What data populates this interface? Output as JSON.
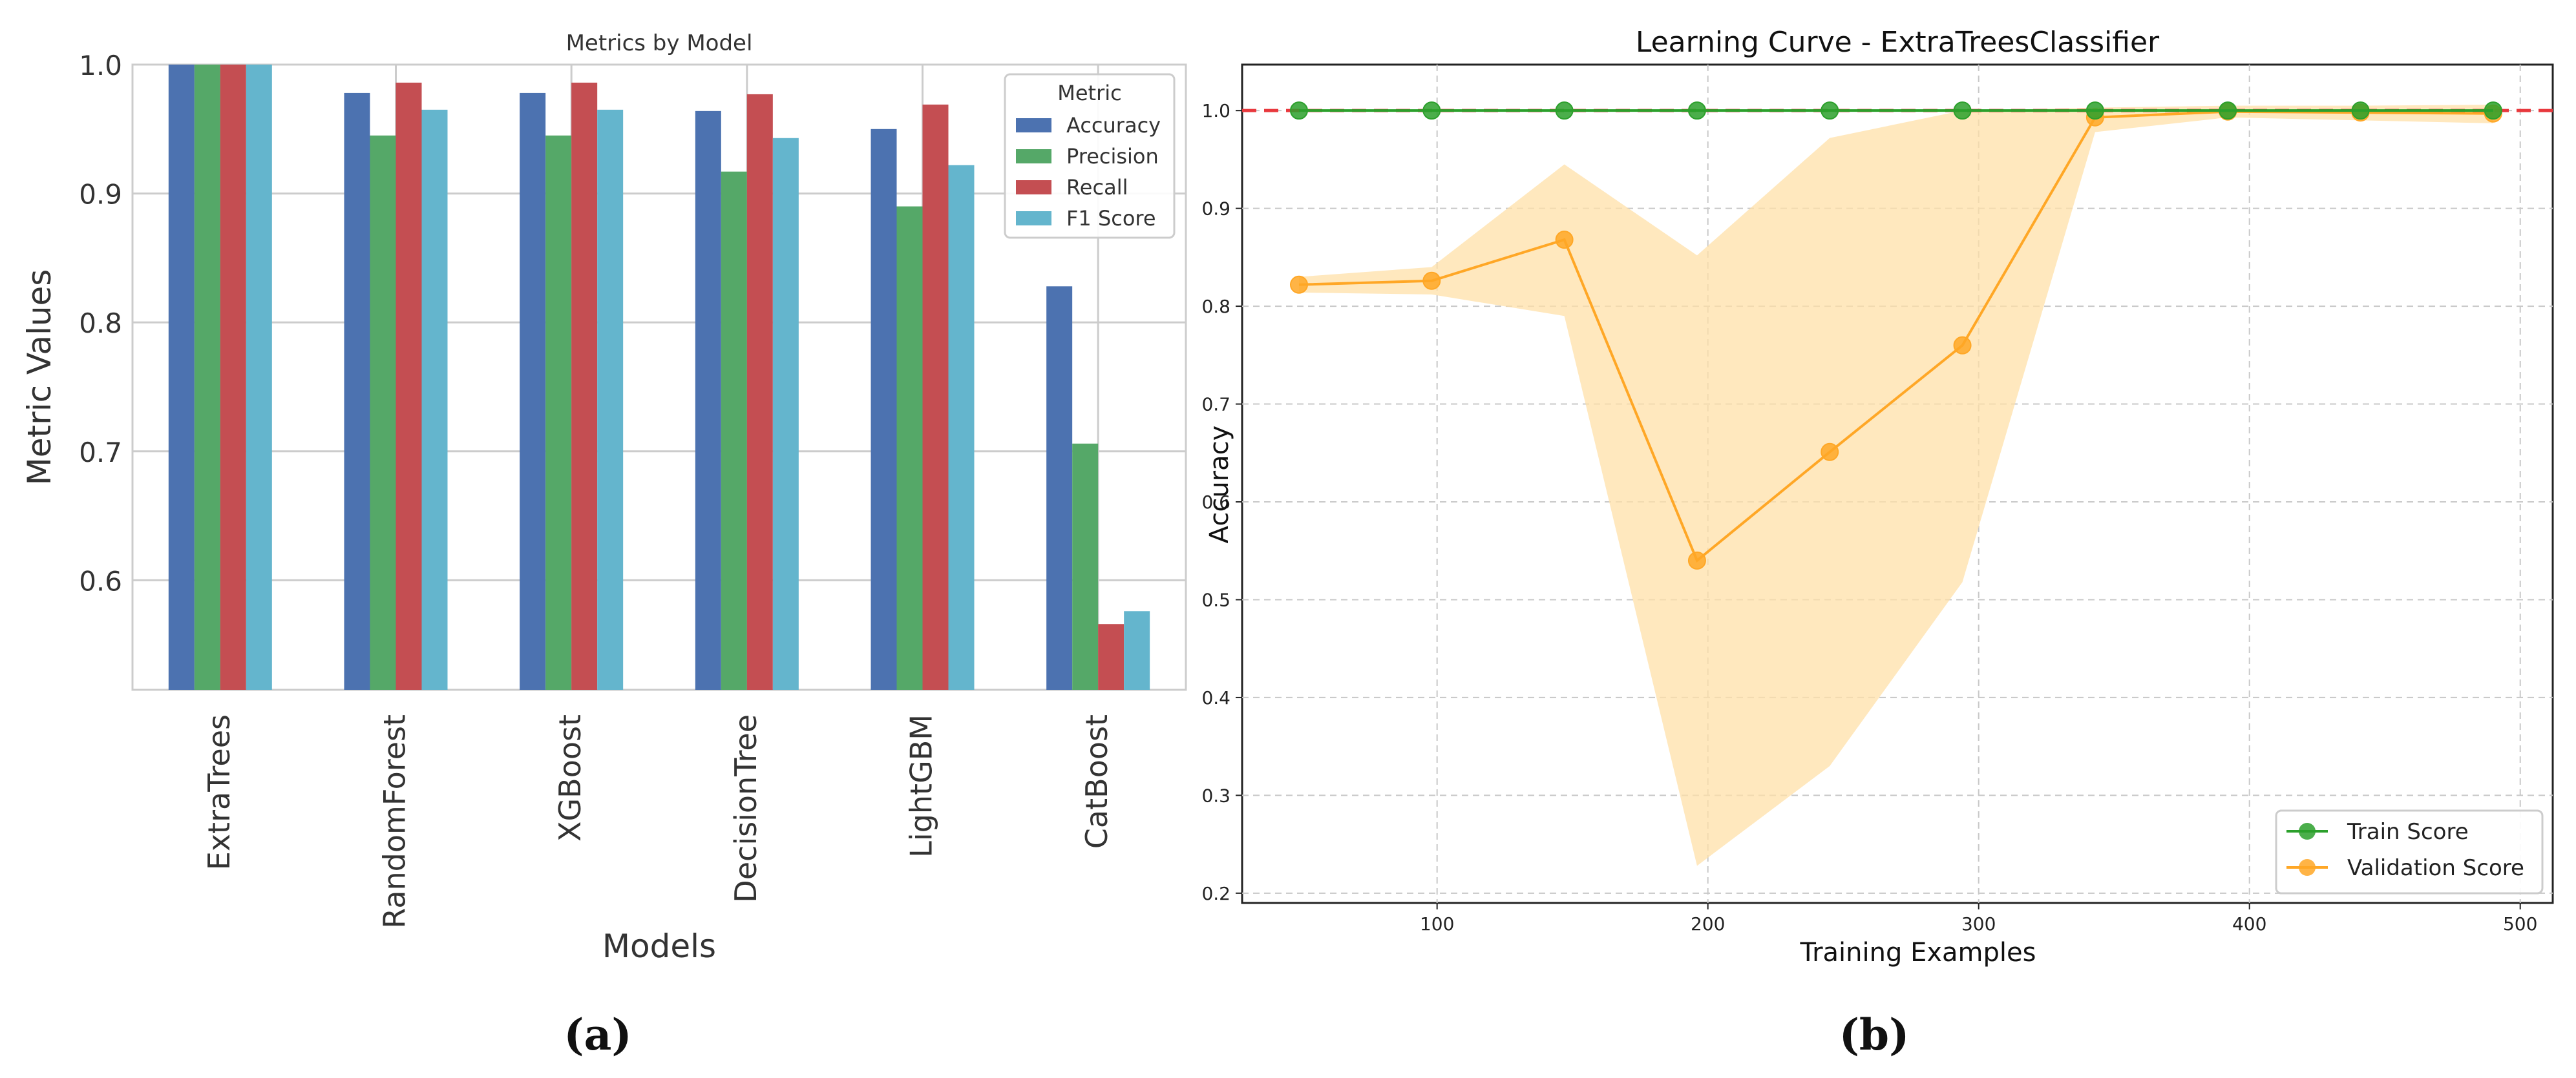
{
  "chart_data": [
    {
      "type": "bar",
      "title": "Metrics by Model",
      "xlabel": "Models",
      "ylabel": "Metric Values",
      "ylim": [
        0.515,
        1.0
      ],
      "yticks": [
        0.6,
        0.7,
        0.8,
        0.9,
        1.0
      ],
      "ytick_labels": [
        "0.6",
        "0.7",
        "0.8",
        "0.9",
        "1.0"
      ],
      "grid": true,
      "legend_title": "Metric",
      "legend_position": "top-right",
      "categories": [
        "ExtraTrees",
        "RandomForest",
        "XGBoost",
        "DecisionTree",
        "LightGBM",
        "CatBoost"
      ],
      "series": [
        {
          "name": "Accuracy",
          "color": "#4c72b0",
          "values": [
            1.0,
            0.978,
            0.978,
            0.964,
            0.95,
            0.828
          ]
        },
        {
          "name": "Precision",
          "color": "#55a868",
          "values": [
            1.0,
            0.945,
            0.945,
            0.917,
            0.89,
            0.706
          ]
        },
        {
          "name": "Recall",
          "color": "#c44e52",
          "values": [
            1.0,
            0.986,
            0.986,
            0.977,
            0.969,
            0.566
          ]
        },
        {
          "name": "F1 Score",
          "color": "#64b5cd",
          "values": [
            1.0,
            0.965,
            0.965,
            0.943,
            0.922,
            0.576
          ]
        }
      ],
      "caption": "(a)"
    },
    {
      "type": "line",
      "title": "Learning Curve - ExtraTreesClassifier",
      "xlabel": "Training Examples",
      "ylabel": "Accuracy",
      "xlim": [
        28,
        512
      ],
      "ylim": [
        0.19,
        1.047
      ],
      "xticks": [
        100,
        200,
        300,
        400,
        500
      ],
      "xtick_labels": [
        "100",
        "200",
        "300",
        "400",
        "500"
      ],
      "yticks": [
        0.2,
        0.3,
        0.4,
        0.5,
        0.6,
        0.7,
        0.8,
        0.9,
        1.0
      ],
      "ytick_labels": [
        "0.2",
        "0.3",
        "0.4",
        "0.5",
        "0.6",
        "0.7",
        "0.8",
        "0.9",
        "1.0"
      ],
      "grid": true,
      "legend_position": "bottom-right",
      "reference_line": {
        "y": 1.0,
        "color": "#e8383d",
        "style": "dashed"
      },
      "x": [
        49,
        98,
        147,
        196,
        245,
        294,
        343,
        392,
        441,
        490
      ],
      "series": [
        {
          "name": "Train Score",
          "color": "#2ca02c",
          "values": [
            1.0,
            1.0,
            1.0,
            1.0,
            1.0,
            1.0,
            1.0,
            1.0,
            1.0,
            1.0
          ]
        },
        {
          "name": "Validation Score",
          "color": "#ffa726",
          "values": [
            0.822,
            0.826,
            0.868,
            0.54,
            0.651,
            0.76,
            0.993,
            0.999,
            0.998,
            0.997
          ],
          "band_upper": [
            0.83,
            0.84,
            0.945,
            0.852,
            0.972,
            1.0,
            1.003,
            1.005,
            1.005,
            1.006
          ],
          "band_lower": [
            0.814,
            0.812,
            0.79,
            0.228,
            0.33,
            0.518,
            0.978,
            0.993,
            0.99,
            0.987
          ],
          "band_color": "#ffe0a8"
        }
      ],
      "caption": "(b)"
    }
  ]
}
